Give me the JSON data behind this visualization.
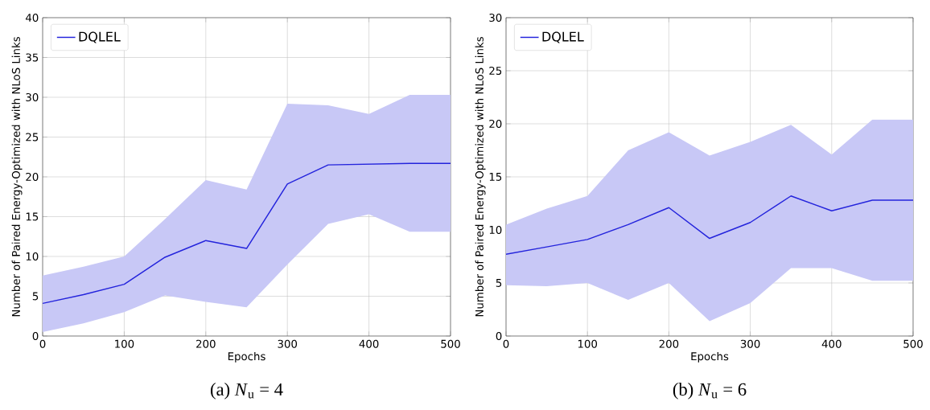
{
  "chart_data": [
    {
      "type": "line",
      "title": "(a) *N*$_{u}$ = 4",
      "xlabel": "Epochs",
      "ylabel": "Number of Paired Energy-Optimized with NLoS Links",
      "x": [
        0,
        50,
        100,
        150,
        200,
        250,
        300,
        350,
        400,
        450,
        500
      ],
      "series": [
        {
          "name": "DQLEL",
          "color": "#2424dc",
          "values": [
            4.1,
            5.2,
            6.5,
            9.9,
            12,
            11,
            19.1,
            21.5,
            21.6,
            21.7,
            21.7
          ],
          "upper": [
            7.6,
            8.7,
            10,
            14.7,
            19.6,
            18.4,
            29.2,
            29,
            27.9,
            30.3,
            30.3
          ],
          "lower": [
            0.5,
            1.6,
            3,
            5.1,
            4.3,
            3.6,
            9,
            14.1,
            15.3,
            13.1,
            13.1
          ]
        }
      ],
      "xlim": [
        0,
        500
      ],
      "ylim": [
        0,
        40
      ],
      "xticks": [
        0,
        100,
        200,
        300,
        400,
        500
      ],
      "yticks": [
        0,
        5,
        10,
        15,
        20,
        25,
        30,
        35,
        40
      ],
      "grid": true,
      "legend": "top left"
    },
    {
      "type": "line",
      "title": "(b) *N*$_{u}$ = 6",
      "xlabel": "Epochs",
      "ylabel": "Number of Paired Energy-Optimized with NLoS Links",
      "x": [
        0,
        50,
        100,
        150,
        200,
        250,
        300,
        350,
        400,
        450,
        500
      ],
      "series": [
        {
          "name": "DQLEL",
          "color": "#2424dc",
          "values": [
            7.7,
            8.4,
            9.1,
            10.5,
            12.1,
            9.2,
            10.7,
            13.2,
            11.8,
            12.8,
            12.8
          ],
          "upper": [
            10.5,
            12,
            13.2,
            17.5,
            19.2,
            17,
            18.3,
            19.9,
            17.1,
            20.4,
            20.4
          ],
          "lower": [
            4.8,
            4.7,
            5,
            3.4,
            5,
            1.4,
            3.1,
            6.4,
            6.4,
            5.2,
            5.2
          ]
        }
      ],
      "xlim": [
        0,
        500
      ],
      "ylim": [
        0,
        30
      ],
      "xticks": [
        0,
        100,
        200,
        300,
        400,
        500
      ],
      "yticks": [
        0,
        5,
        10,
        15,
        20,
        25,
        30
      ],
      "grid": true,
      "legend": "top left"
    }
  ]
}
